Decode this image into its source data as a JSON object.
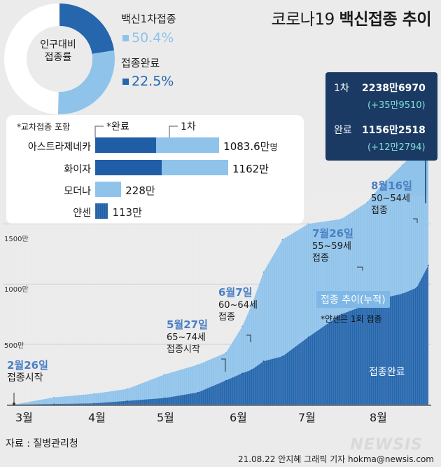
{
  "title_prefix": "코로나19",
  "title_main": "백신접종 추이",
  "donut": {
    "center_line1": "인구대비",
    "center_line2": "접종률",
    "first_label": "백신1차접종",
    "first_value": "50.4%",
    "full_label": "접종완료",
    "full_value": "22.5%",
    "first_pct": 50.4,
    "full_pct": 22.5
  },
  "colors": {
    "light": "#8fc3ea",
    "dark": "#2566ad",
    "darkbar": "#1f5ea6",
    "navy": "#1b3a63"
  },
  "vaccines": {
    "note": "*교차접종 포함",
    "hdr_done": "*완료",
    "hdr_first": "1차",
    "items": [
      {
        "name": "아스트라제네카",
        "value": "1083.6만",
        "unit": "명",
        "first": 1083.6,
        "done": 530
      },
      {
        "name": "화이자",
        "value": "1162만",
        "unit": "",
        "first": 1162,
        "done": 578
      },
      {
        "name": "모더나",
        "value": "228만",
        "unit": "",
        "first": 228,
        "done": 0
      },
      {
        "name": "얀센",
        "value": "113만",
        "unit": "",
        "first": 113,
        "done": 113
      }
    ]
  },
  "summary": {
    "first_label": "1차",
    "first_value": "2238만6970",
    "first_inc": "(+35만9510)",
    "done_label": "완료",
    "done_value": "1156만2518",
    "done_inc": "(+12만2794)"
  },
  "annotations": [
    {
      "date": "2월26일",
      "text": "접종시작"
    },
    {
      "date": "5월27일",
      "text1": "65~74세",
      "text2": "접종시작"
    },
    {
      "date": "6월7일",
      "text1": "60~64세",
      "text2": "접종"
    },
    {
      "date": "7월26일",
      "text1": "55~59세",
      "text2": "접종"
    },
    {
      "date": "8월16일",
      "text1": "50~54세",
      "text2": "접종"
    }
  ],
  "trend_label": "접종 추이(누적)",
  "anssen_note": "*얀센은 1회 접종",
  "done_area_label": "접종완료",
  "source": "자료 : 질병관리청",
  "credit": "21.08.22 안지혜 그래픽 기자 hokma@newsis.com",
  "watermark": "NEWSIS",
  "chart_data": {
    "type": "area",
    "y_unit": "만",
    "y_ticks": [
      "500만",
      "1000만",
      "1500만"
    ],
    "y_tick_values": [
      500,
      1000,
      1500
    ],
    "x_ticks": [
      "3월",
      "4월",
      "5월",
      "6월",
      "7월",
      "8월"
    ],
    "x_dates": [
      "2021-02-26",
      "2021-03-15",
      "2021-04-01",
      "2021-04-15",
      "2021-05-01",
      "2021-05-15",
      "2021-05-27",
      "2021-06-03",
      "2021-06-07",
      "2021-06-12",
      "2021-06-20",
      "2021-07-01",
      "2021-07-15",
      "2021-07-26",
      "2021-08-01",
      "2021-08-10",
      "2021-08-16",
      "2021-08-21"
    ],
    "series": [
      {
        "name": "접종 추이(누적)",
        "values": [
          0,
          60,
          90,
          130,
          250,
          330,
          430,
          650,
          830,
          1100,
          1370,
          1500,
          1540,
          1680,
          1820,
          1990,
          2110,
          2238.7
        ]
      },
      {
        "name": "접종완료",
        "values": [
          0,
          5,
          10,
          30,
          55,
          100,
          200,
          260,
          290,
          360,
          400,
          560,
          750,
          830,
          880,
          920,
          970,
          1156.3
        ]
      }
    ],
    "ylim": [
      0,
      2350
    ]
  }
}
